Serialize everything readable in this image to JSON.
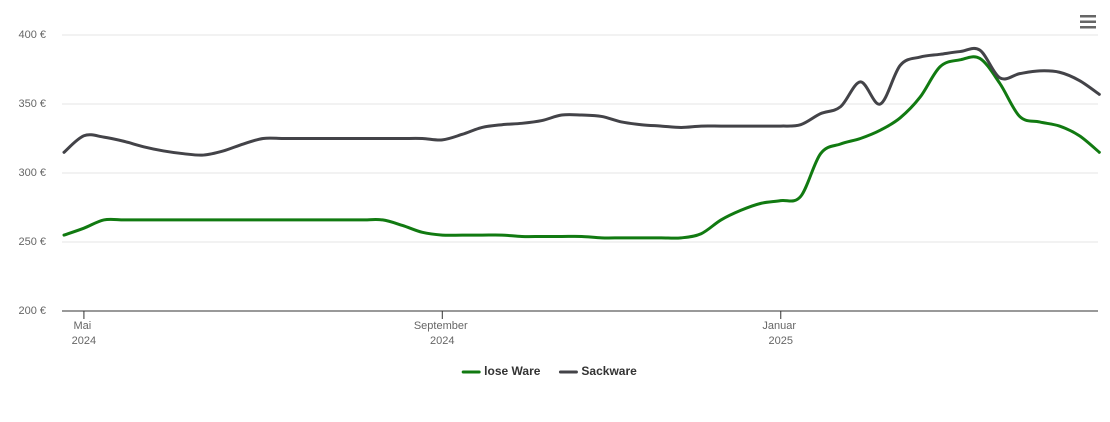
{
  "chart_data": {
    "type": "line",
    "categories": [
      null,
      "Mai 2024",
      null,
      null,
      null,
      null,
      null,
      null,
      null,
      null,
      null,
      null,
      null,
      null,
      null,
      null,
      null,
      null,
      null,
      "September 2024",
      null,
      null,
      null,
      null,
      null,
      null,
      null,
      null,
      null,
      null,
      null,
      null,
      null,
      null,
      null,
      null,
      "Januar 2025",
      null,
      null,
      null,
      null,
      null,
      null,
      null,
      null,
      null,
      null,
      null,
      null,
      null,
      null,
      null,
      null
    ],
    "series": [
      {
        "name": "lose Ware",
        "color": "#117a11",
        "values": [
          255,
          260,
          266,
          266,
          266,
          266,
          266,
          266,
          266,
          266,
          266,
          266,
          266,
          266,
          266,
          266,
          266,
          262,
          257,
          255,
          255,
          255,
          255,
          254,
          254,
          254,
          254,
          253,
          253,
          253,
          253,
          253,
          256,
          266,
          273,
          278,
          280,
          283,
          314,
          321,
          325,
          331,
          340,
          355,
          377,
          382,
          383,
          365,
          341,
          337,
          334,
          327,
          315
        ]
      },
      {
        "name": "Sackware",
        "color": "#434348",
        "values": [
          315,
          327,
          326,
          323,
          319,
          316,
          314,
          313,
          316,
          321,
          325,
          325,
          325,
          325,
          325,
          325,
          325,
          325,
          325,
          324,
          328,
          333,
          335,
          336,
          338,
          342,
          342,
          341,
          337,
          335,
          334,
          333,
          334,
          334,
          334,
          334,
          334,
          335,
          343,
          348,
          366,
          350,
          378,
          384,
          386,
          388,
          389,
          369,
          372,
          374,
          373,
          367,
          357
        ]
      }
    ],
    "ylim": [
      200,
      400
    ],
    "yticks": [
      {
        "value": 200,
        "label": "200 €"
      },
      {
        "value": 250,
        "label": "250 €"
      },
      {
        "value": 300,
        "label": "300 €"
      },
      {
        "value": 350,
        "label": "350 €"
      },
      {
        "value": 400,
        "label": "400 €"
      }
    ],
    "grid": true,
    "legend": "bottom"
  }
}
